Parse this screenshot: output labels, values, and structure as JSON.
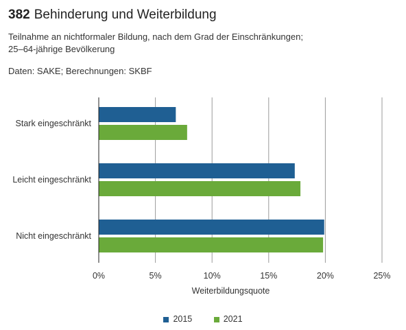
{
  "header": {
    "number": "382",
    "title": "Behinderung und Weiterbildung",
    "subtitle_line1": "Teilnahme an nichtformaler Bildung, nach dem Grad der Einschränkungen;",
    "subtitle_line2": "25–64-jährige Bevölkerung",
    "source": "Daten: SAKE; Berechnungen: SKBF"
  },
  "colors": {
    "series_2015": "#1f5f93",
    "series_2021": "#6aaa3a",
    "grid": "#9a9a9a",
    "text": "#333333"
  },
  "chart_data": {
    "type": "bar",
    "orientation": "horizontal",
    "categories": [
      "Stark eingeschränkt",
      "Leicht eingeschränkt",
      "Nicht eingeschränkt"
    ],
    "series": [
      {
        "name": "2015",
        "values": [
          6.8,
          17.3,
          19.9
        ]
      },
      {
        "name": "2021",
        "values": [
          7.8,
          17.8,
          19.8
        ]
      }
    ],
    "xlabel": "Weiterbildungsquote",
    "xlim": [
      0,
      25
    ],
    "xticks": [
      0,
      5,
      10,
      15,
      20,
      25
    ],
    "xtick_labels": [
      "0%",
      "5%",
      "10%",
      "15%",
      "20%",
      "25%"
    ],
    "grid": true,
    "legend_position": "bottom"
  }
}
